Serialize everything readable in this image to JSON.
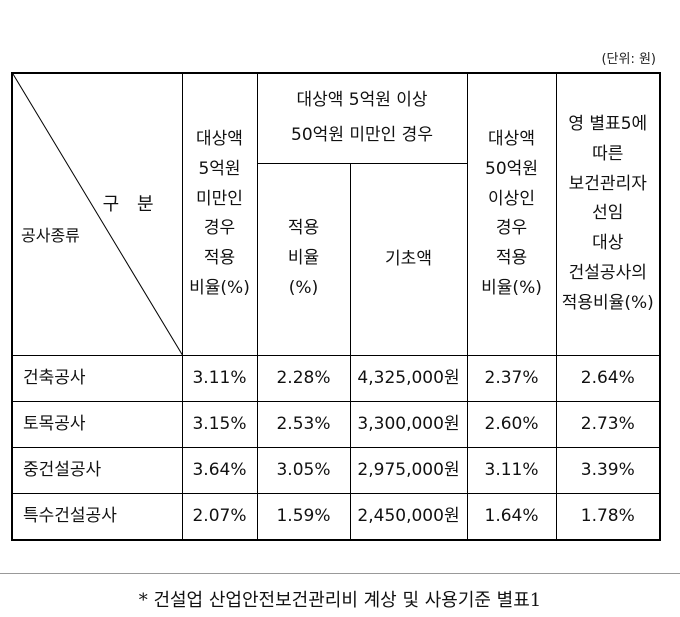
{
  "unit_note": "(단위: 원)",
  "table": {
    "diag_top": "구 분",
    "diag_bottom": "공사종류",
    "headers": {
      "col1": [
        "대상액",
        "5억원",
        "미만인",
        "경우",
        "적용",
        "비율(%)"
      ],
      "group": [
        "대상액 5억원 이상",
        "50억원 미만인 경우"
      ],
      "sub_rate": [
        "적용",
        "비율",
        "(%)"
      ],
      "sub_base": "기초액",
      "col4": [
        "대상액",
        "50억원",
        "이상인",
        "경우",
        "적용",
        "비율(%)"
      ],
      "col5": [
        "영 별표5에",
        "따른",
        "보건관리자",
        "선임",
        "대상",
        "건설공사의",
        "적용비율(%)"
      ]
    },
    "rows": [
      {
        "kind": "건축공사",
        "c1": "3.11%",
        "c2": "2.28%",
        "c3": "4,325,000원",
        "c4": "2.37%",
        "c5": "2.64%"
      },
      {
        "kind": "토목공사",
        "c1": "3.15%",
        "c2": "2.53%",
        "c3": "3,300,000원",
        "c4": "2.60%",
        "c5": "2.73%"
      },
      {
        "kind": "중건설공사",
        "c1": "3.64%",
        "c2": "3.05%",
        "c3": "2,975,000원",
        "c4": "3.11%",
        "c5": "3.39%"
      },
      {
        "kind": "특수건설공사",
        "c1": "2.07%",
        "c2": "1.59%",
        "c3": "2,450,000원",
        "c4": "1.64%",
        "c5": "1.78%"
      }
    ]
  },
  "footnote": "* 건설업 산업안전보건관리비 계상 및 사용기준 별표1"
}
